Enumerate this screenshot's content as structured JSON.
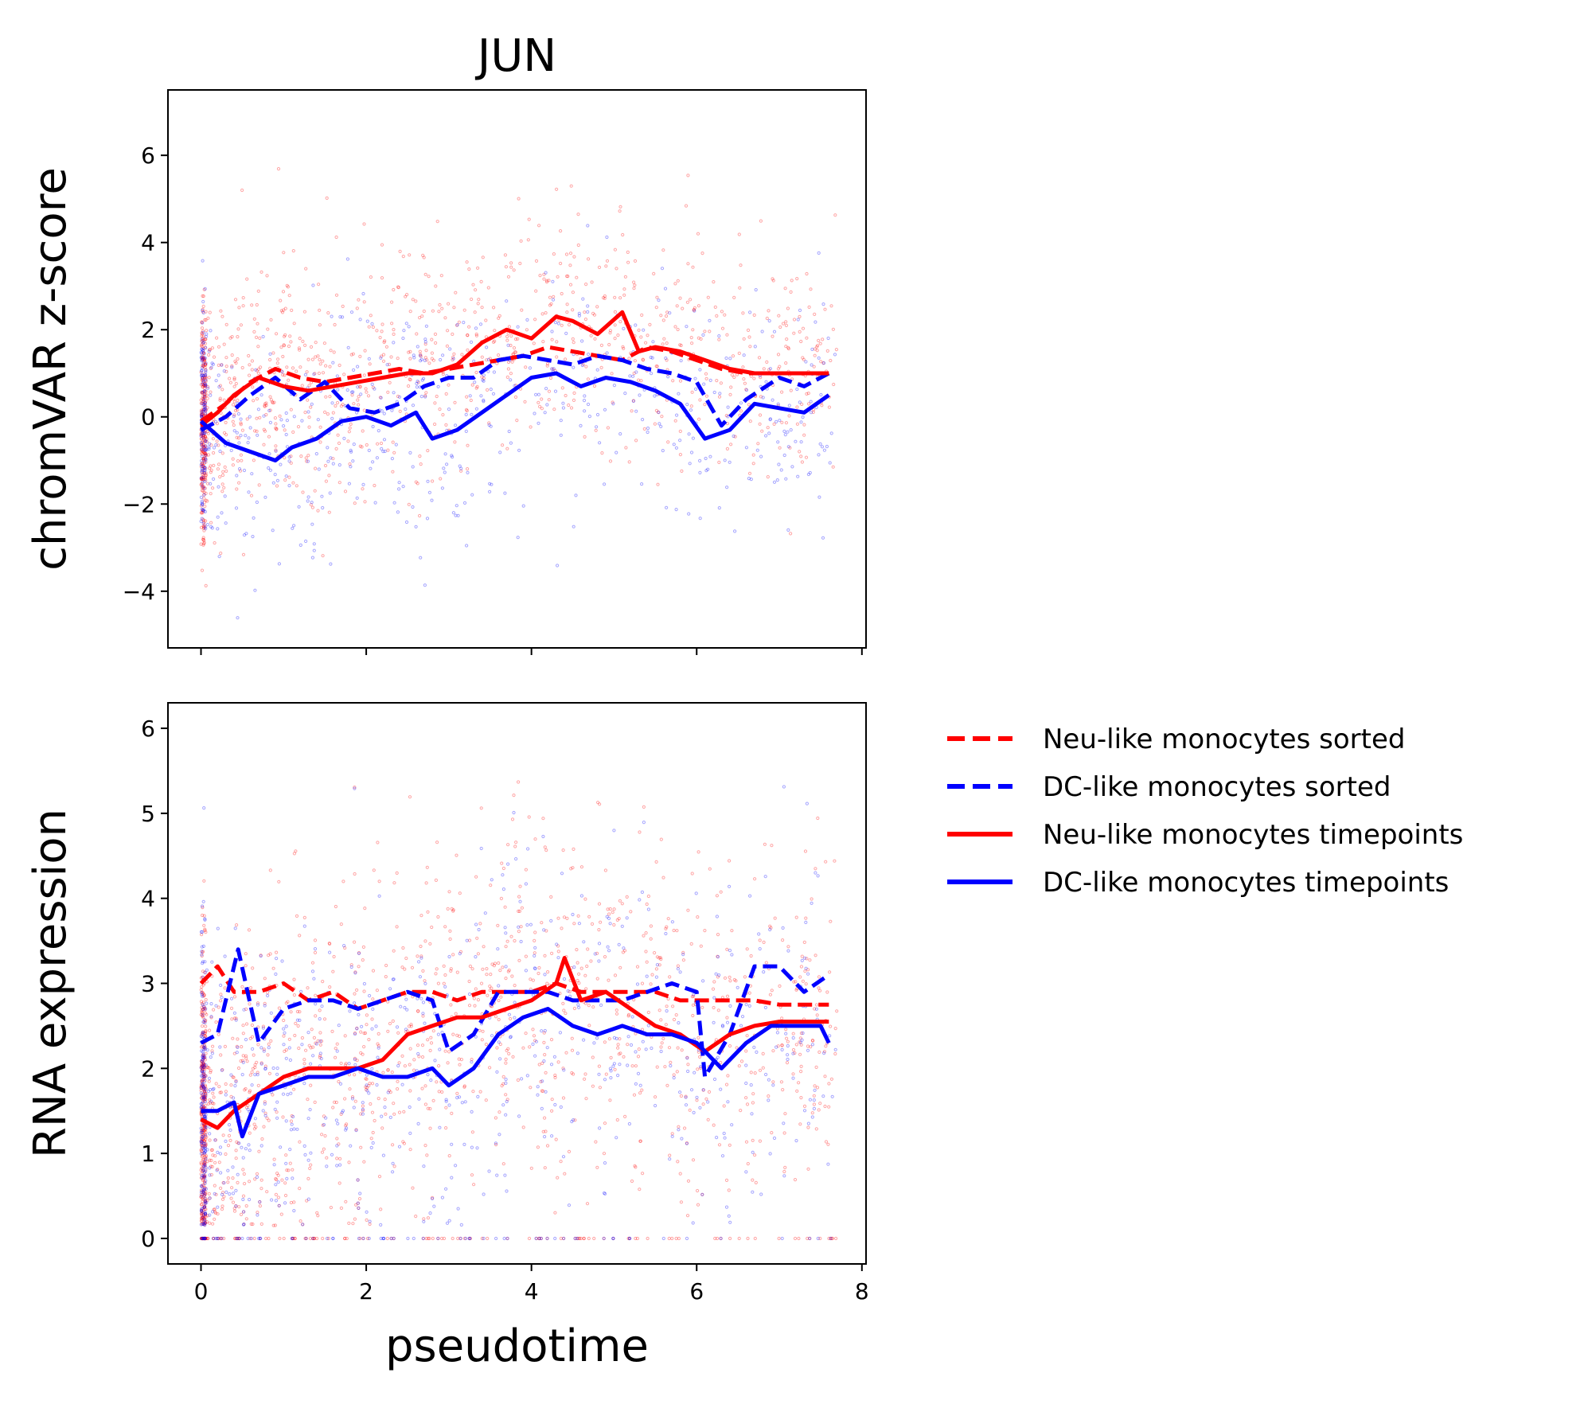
{
  "colors": {
    "neu": "#ff0000",
    "dc": "#0000ff"
  },
  "legend": {
    "placement": "right",
    "entries": [
      {
        "label": "Neu-like monocytes sorted",
        "color": "#ff0000",
        "style": "dashed"
      },
      {
        "label": "DC-like monocytes sorted",
        "color": "#0000ff",
        "style": "dashed"
      },
      {
        "label": "Neu-like monocytes timepoints",
        "color": "#ff0000",
        "style": "solid"
      },
      {
        "label": "DC-like monocytes timepoints",
        "color": "#0000ff",
        "style": "solid"
      }
    ]
  },
  "chart_data": [
    {
      "type": "scatter",
      "title": "JUN",
      "xlabel": "",
      "ylabel": "chromVAR z-score",
      "xlim": [
        -0.4,
        8.05
      ],
      "ylim": [
        -5.3,
        7.5
      ],
      "xticks": [
        0,
        2,
        4,
        6,
        8
      ],
      "xtick_labels_visible": false,
      "yticks": [
        -4,
        -2,
        0,
        2,
        4,
        6
      ],
      "ytick_labels": [
        "−4",
        "−2",
        "0",
        "2",
        "4",
        "6"
      ],
      "grid": false,
      "series": [
        {
          "key": "neu_sorted",
          "color": "#ff0000",
          "style": "dashed",
          "x": [
            0,
            0.3,
            0.6,
            0.9,
            1.2,
            1.5,
            1.8,
            2.1,
            2.4,
            2.7,
            3.0,
            3.3,
            3.6,
            3.9,
            4.2,
            4.5,
            4.8,
            5.1,
            5.4,
            5.7,
            6.0,
            6.3,
            6.6,
            7.0,
            7.3,
            7.6
          ],
          "y": [
            -0.1,
            0.3,
            0.8,
            1.1,
            0.9,
            0.8,
            0.9,
            1.0,
            1.1,
            1.0,
            1.1,
            1.2,
            1.3,
            1.4,
            1.6,
            1.5,
            1.4,
            1.3,
            1.6,
            1.5,
            1.3,
            1.1,
            1.0,
            1.0,
            1.0,
            1.0
          ]
        },
        {
          "key": "dc_sorted",
          "color": "#0000ff",
          "style": "dashed",
          "x": [
            0,
            0.3,
            0.6,
            0.9,
            1.2,
            1.5,
            1.8,
            2.1,
            2.4,
            2.7,
            3.0,
            3.3,
            3.6,
            3.9,
            4.2,
            4.5,
            4.8,
            5.1,
            5.4,
            5.7,
            6.0,
            6.3,
            6.6,
            7.0,
            7.3,
            7.6
          ],
          "y": [
            -0.3,
            0.0,
            0.5,
            0.9,
            0.4,
            0.8,
            0.2,
            0.1,
            0.3,
            0.7,
            0.9,
            0.9,
            1.3,
            1.4,
            1.3,
            1.2,
            1.4,
            1.3,
            1.1,
            1.0,
            0.8,
            -0.2,
            0.4,
            0.9,
            0.7,
            1.0
          ]
        },
        {
          "key": "neu_timepoints",
          "color": "#ff0000",
          "style": "solid",
          "x": [
            0,
            0.2,
            0.4,
            0.7,
            1.0,
            1.3,
            1.6,
            1.9,
            2.2,
            2.5,
            2.8,
            3.1,
            3.4,
            3.7,
            4.0,
            4.3,
            4.5,
            4.8,
            5.1,
            5.3,
            5.5,
            5.8,
            6.1,
            6.4,
            6.7,
            7.0,
            7.3,
            7.6
          ],
          "y": [
            -0.2,
            0.1,
            0.5,
            0.9,
            0.7,
            0.6,
            0.7,
            0.8,
            0.9,
            1.0,
            1.0,
            1.2,
            1.7,
            2.0,
            1.8,
            2.3,
            2.2,
            1.9,
            2.4,
            1.5,
            1.6,
            1.5,
            1.3,
            1.1,
            1.0,
            1.0,
            1.0,
            1.0
          ]
        },
        {
          "key": "dc_timepoints",
          "color": "#0000ff",
          "style": "solid",
          "x": [
            0,
            0.3,
            0.6,
            0.9,
            1.1,
            1.4,
            1.7,
            2.0,
            2.3,
            2.6,
            2.8,
            3.1,
            3.4,
            3.7,
            4.0,
            4.3,
            4.6,
            4.9,
            5.2,
            5.5,
            5.8,
            6.1,
            6.4,
            6.7,
            7.0,
            7.3,
            7.6
          ],
          "y": [
            -0.1,
            -0.6,
            -0.8,
            -1.0,
            -0.7,
            -0.5,
            -0.1,
            0.0,
            -0.2,
            0.1,
            -0.5,
            -0.3,
            0.1,
            0.5,
            0.9,
            1.0,
            0.7,
            0.9,
            0.8,
            0.6,
            0.3,
            -0.5,
            -0.3,
            0.3,
            0.2,
            0.1,
            0.5
          ]
        }
      ]
    },
    {
      "type": "scatter",
      "title": "",
      "xlabel": "pseudotime",
      "ylabel": "RNA expression",
      "xlim": [
        -0.4,
        8.05
      ],
      "ylim": [
        -0.3,
        6.3
      ],
      "xticks": [
        0,
        2,
        4,
        6,
        8
      ],
      "xtick_labels": [
        "0",
        "2",
        "4",
        "6",
        "8"
      ],
      "yticks": [
        0,
        1,
        2,
        3,
        4,
        5,
        6
      ],
      "ytick_labels": [
        "0",
        "1",
        "2",
        "3",
        "4",
        "5",
        "6"
      ],
      "grid": false,
      "series": [
        {
          "key": "neu_sorted",
          "color": "#ff0000",
          "style": "dashed",
          "x": [
            0,
            0.2,
            0.4,
            0.7,
            1.0,
            1.3,
            1.6,
            1.9,
            2.2,
            2.5,
            2.8,
            3.1,
            3.4,
            3.7,
            4.0,
            4.3,
            4.6,
            4.9,
            5.2,
            5.5,
            5.8,
            6.1,
            6.4,
            6.7,
            7.0,
            7.3,
            7.6
          ],
          "y": [
            3.0,
            3.2,
            2.9,
            2.9,
            3.0,
            2.8,
            2.9,
            2.7,
            2.8,
            2.9,
            2.9,
            2.8,
            2.9,
            2.9,
            2.9,
            3.0,
            2.9,
            2.9,
            2.9,
            2.9,
            2.8,
            2.8,
            2.8,
            2.8,
            2.75,
            2.75,
            2.75
          ]
        },
        {
          "key": "dc_sorted",
          "color": "#0000ff",
          "style": "dashed",
          "x": [
            0,
            0.2,
            0.45,
            0.7,
            1.0,
            1.3,
            1.6,
            1.9,
            2.2,
            2.5,
            2.8,
            3.0,
            3.3,
            3.6,
            3.9,
            4.2,
            4.5,
            4.8,
            5.1,
            5.4,
            5.7,
            6.0,
            6.1,
            6.4,
            6.7,
            7.0,
            7.3,
            7.6
          ],
          "y": [
            2.3,
            2.4,
            3.4,
            2.3,
            2.7,
            2.8,
            2.8,
            2.7,
            2.8,
            2.9,
            2.8,
            2.2,
            2.4,
            2.9,
            2.9,
            2.9,
            2.8,
            2.8,
            2.8,
            2.9,
            3.0,
            2.9,
            1.9,
            2.4,
            3.2,
            3.2,
            2.9,
            3.1
          ]
        },
        {
          "key": "neu_timepoints",
          "color": "#ff0000",
          "style": "solid",
          "x": [
            0,
            0.2,
            0.4,
            0.7,
            1.0,
            1.3,
            1.6,
            1.9,
            2.2,
            2.5,
            2.8,
            3.1,
            3.4,
            3.7,
            4.0,
            4.3,
            4.4,
            4.6,
            4.9,
            5.2,
            5.5,
            5.8,
            6.1,
            6.4,
            6.7,
            7.0,
            7.3,
            7.6
          ],
          "y": [
            1.4,
            1.3,
            1.5,
            1.7,
            1.9,
            2.0,
            2.0,
            2.0,
            2.1,
            2.4,
            2.5,
            2.6,
            2.6,
            2.7,
            2.8,
            3.0,
            3.3,
            2.8,
            2.9,
            2.7,
            2.5,
            2.4,
            2.2,
            2.4,
            2.5,
            2.55,
            2.55,
            2.55
          ]
        },
        {
          "key": "dc_timepoints",
          "color": "#0000ff",
          "style": "solid",
          "x": [
            0,
            0.2,
            0.4,
            0.5,
            0.7,
            1.0,
            1.3,
            1.6,
            1.9,
            2.2,
            2.5,
            2.8,
            3.0,
            3.3,
            3.6,
            3.9,
            4.2,
            4.5,
            4.8,
            5.1,
            5.4,
            5.7,
            6.0,
            6.3,
            6.6,
            6.9,
            7.2,
            7.5,
            7.6
          ],
          "y": [
            1.5,
            1.5,
            1.6,
            1.2,
            1.7,
            1.8,
            1.9,
            1.9,
            2.0,
            1.9,
            1.9,
            2.0,
            1.8,
            2.0,
            2.4,
            2.6,
            2.7,
            2.5,
            2.4,
            2.5,
            2.4,
            2.4,
            2.3,
            2.0,
            2.3,
            2.5,
            2.5,
            2.5,
            2.3
          ]
        }
      ]
    }
  ]
}
